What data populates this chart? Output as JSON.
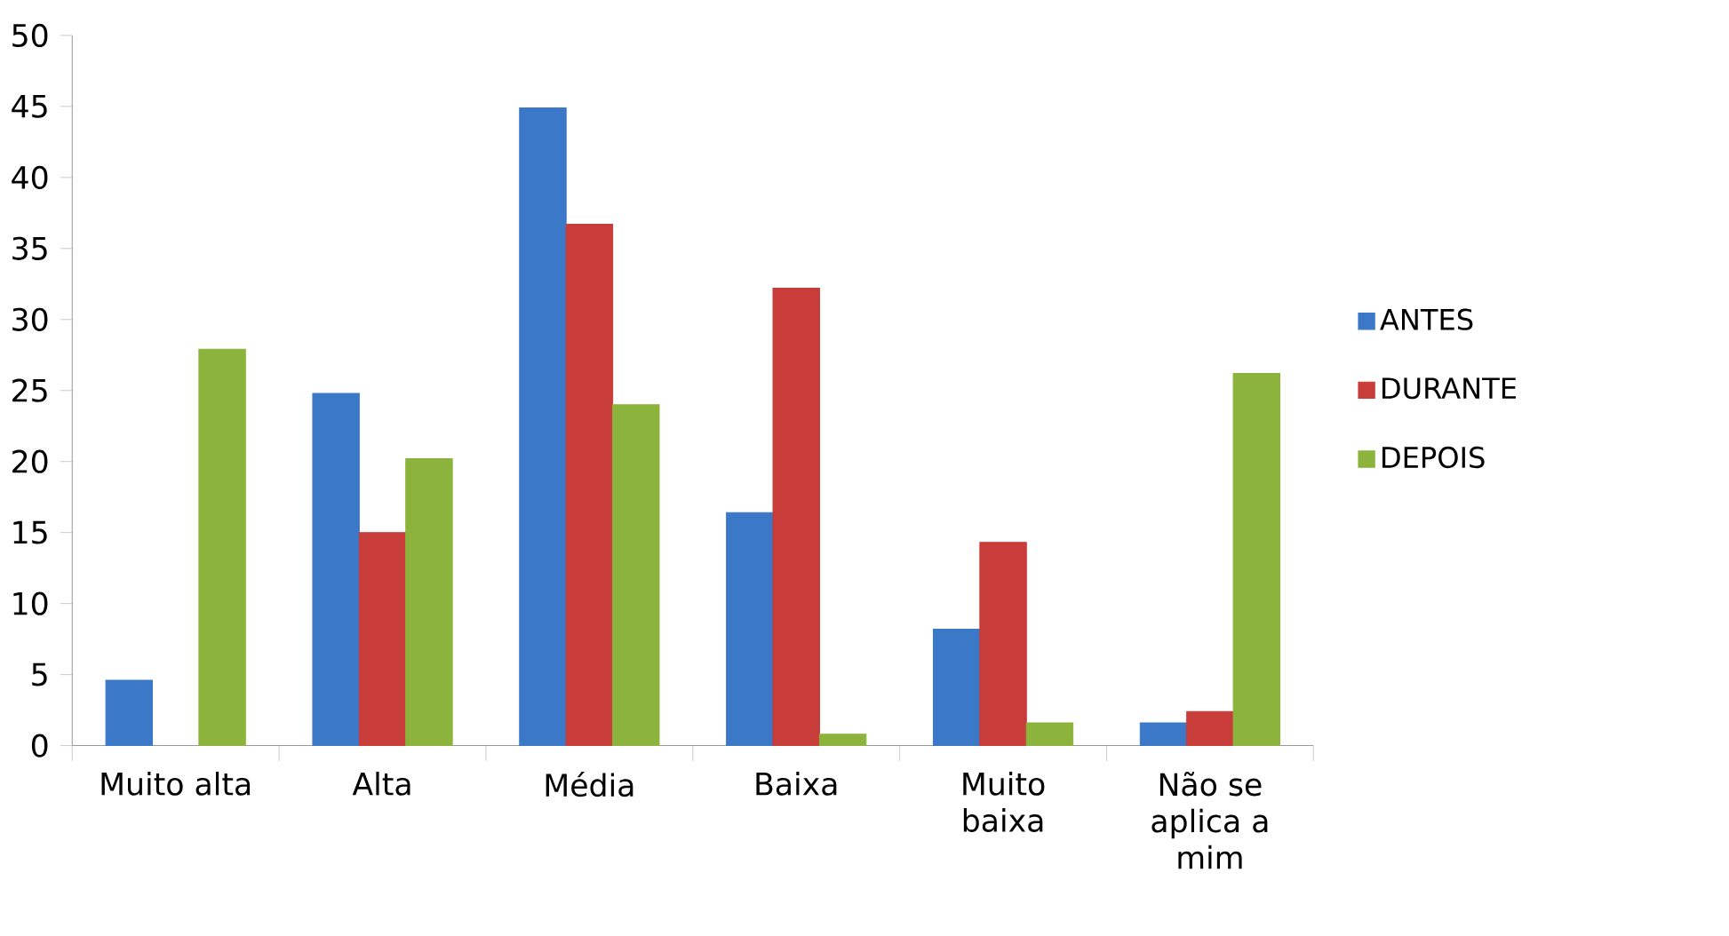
{
  "chart_data": {
    "type": "bar",
    "categories": [
      "Muito alta",
      "Alta",
      "Média",
      "Baixa",
      "Muito baixa",
      "Não se aplica a mim"
    ],
    "series": [
      {
        "name": "ANTES",
        "color": "#3c78c8",
        "values": [
          4.6,
          24.8,
          44.9,
          16.4,
          8.2,
          1.6
        ]
      },
      {
        "name": "DURANTE",
        "color": "#c83c3a",
        "values": [
          null,
          15.0,
          36.7,
          32.2,
          14.3,
          2.4
        ]
      },
      {
        "name": "DEPOIS",
        "color": "#8cb43c",
        "values": [
          27.9,
          20.2,
          24.0,
          0.8,
          1.6,
          26.2
        ]
      }
    ],
    "ylim": [
      0,
      50
    ],
    "yticks": [
      0,
      5,
      10,
      15,
      20,
      25,
      30,
      35,
      40,
      45,
      50
    ],
    "grid": false,
    "legend": "right"
  }
}
